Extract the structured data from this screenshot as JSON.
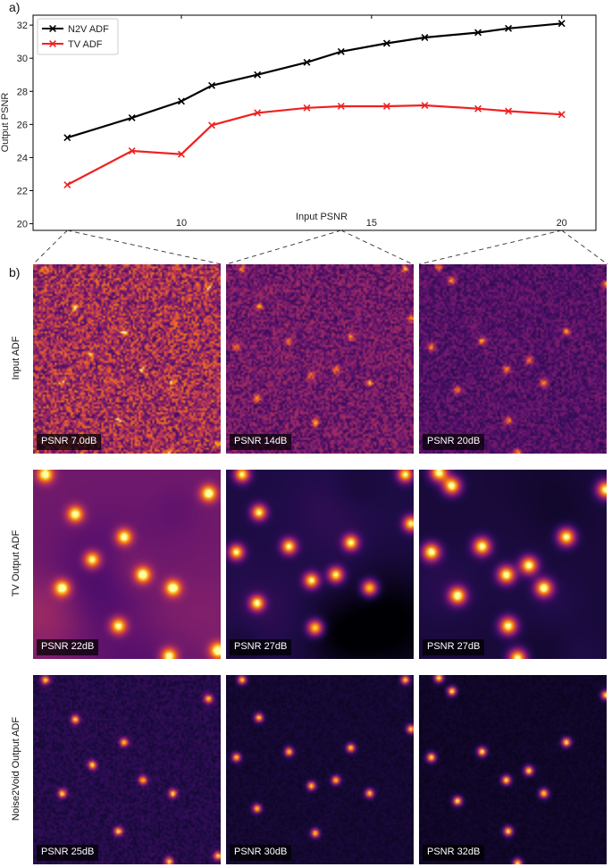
{
  "panel_a_label": "a)",
  "panel_b_label": "b)",
  "chart_data": {
    "type": "line",
    "xlabel": "Input PSNR",
    "ylabel": "Output PSNR",
    "xlim": [
      6.1,
      20.9
    ],
    "ylim": [
      19.6,
      32.6
    ],
    "x_ticks": [
      10,
      15,
      20
    ],
    "y_ticks": [
      20,
      22,
      24,
      26,
      28,
      30,
      32
    ],
    "grid": false,
    "legend_position": "top-left",
    "series": [
      {
        "name": "N2V ADF",
        "color": "#000000",
        "x": [
          7.0,
          8.7,
          10.0,
          10.8,
          12.0,
          13.3,
          14.2,
          15.4,
          16.4,
          17.8,
          18.6,
          20.0
        ],
        "y": [
          25.2,
          26.4,
          27.4,
          28.35,
          29.0,
          29.75,
          30.4,
          30.9,
          31.25,
          31.55,
          31.8,
          32.1
        ]
      },
      {
        "name": "TV ADF",
        "color": "#ee2222",
        "x": [
          7.0,
          8.7,
          10.0,
          10.8,
          12.0,
          13.3,
          14.2,
          15.4,
          16.4,
          17.8,
          18.6,
          20.0
        ],
        "y": [
          22.35,
          24.4,
          24.2,
          25.95,
          26.7,
          27.0,
          27.1,
          27.1,
          27.15,
          26.95,
          26.8,
          26.6
        ]
      }
    ]
  },
  "image_grid": {
    "rows": [
      {
        "label": "Input ADF",
        "tiles": [
          {
            "psnr": "PSNR 7.0dB"
          },
          {
            "psnr": "PSNR 14dB"
          },
          {
            "psnr": "PSNR 20dB"
          }
        ]
      },
      {
        "label": "TV Output ADF",
        "tiles": [
          {
            "psnr": "PSNR 22dB"
          },
          {
            "psnr": "PSNR 27dB"
          },
          {
            "psnr": "PSNR 27dB"
          }
        ]
      },
      {
        "label": "Noise2Void Output ADF",
        "tiles": [
          {
            "psnr": "PSNR 25dB"
          },
          {
            "psnr": "PSNR 30dB"
          },
          {
            "psnr": "PSNR 32dB"
          }
        ]
      }
    ],
    "colormap": "inferno"
  }
}
